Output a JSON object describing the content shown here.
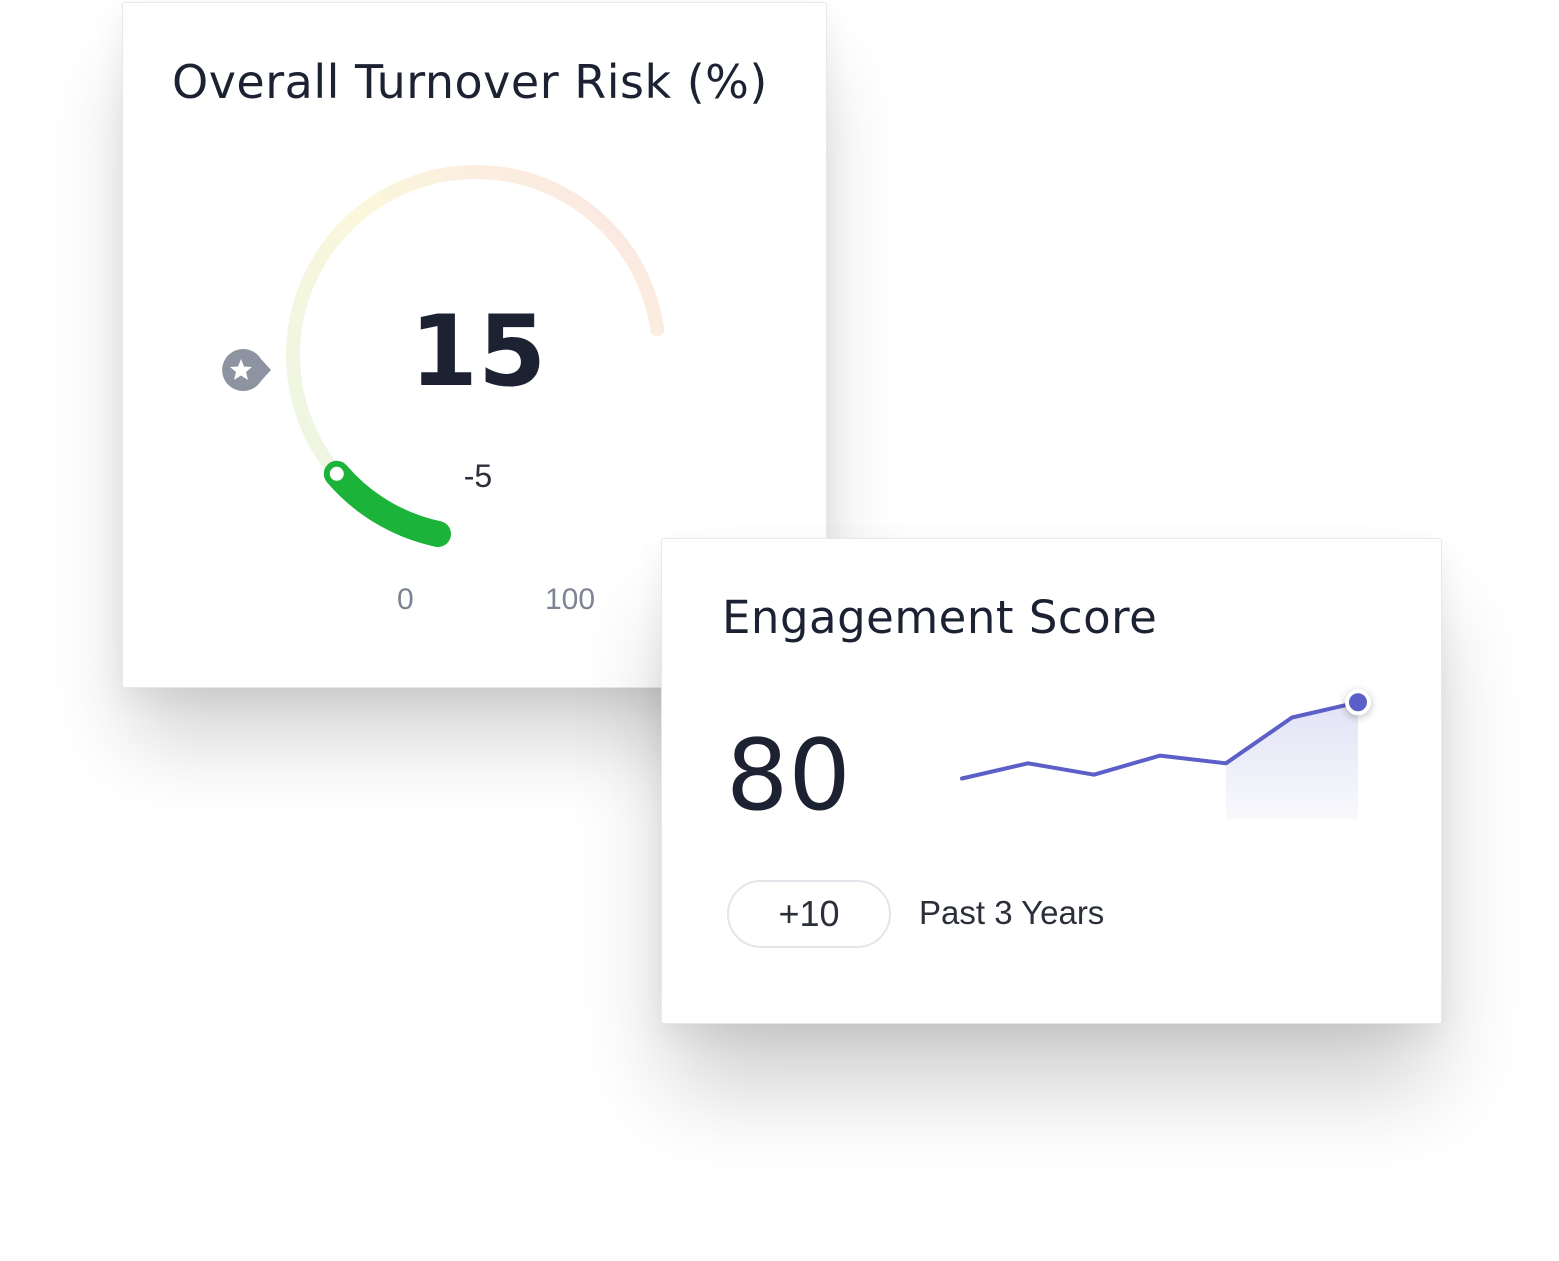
{
  "turnover_card": {
    "title": "Overall Turnover Risk (%)",
    "value": "15",
    "change": "-5",
    "axis_min": "0",
    "axis_max": "100",
    "gauge_fraction": 0.15,
    "colors": {
      "fill": "#1bb33a",
      "track_start": "#e9f5e4",
      "track_mid": "#fbf7dc",
      "track_end": "#fbe3e3"
    }
  },
  "star_badge": {
    "icon": "star-icon",
    "color": "#8d93a1"
  },
  "engagement_card": {
    "title": "Engagement Score",
    "value": "80",
    "change": "+10",
    "period": "Past 3 Years",
    "line_color": "#5b5fc7"
  },
  "chart_data": {
    "type": "line",
    "x": [
      0,
      1,
      2,
      3,
      4,
      5,
      6
    ],
    "values": [
      70,
      72,
      70.5,
      73,
      72,
      78,
      80
    ],
    "ylim": [
      66,
      82
    ]
  }
}
